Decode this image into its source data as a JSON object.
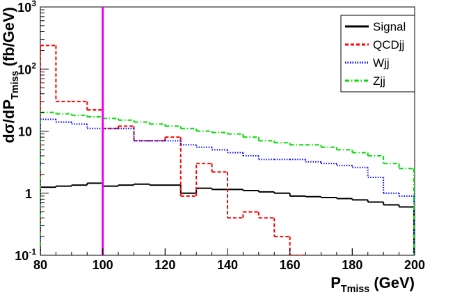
{
  "chart_data": {
    "type": "step-histogram",
    "x_label": {
      "main": "P",
      "sub": "Tmiss",
      "unit": "(GeV)"
    },
    "y_label": {
      "main": "dσ/dP",
      "sub": "Tmiss",
      "unit": "(fb/GeV)"
    },
    "bins": [
      80,
      85,
      90,
      95,
      100,
      105,
      110,
      115,
      120,
      125,
      130,
      135,
      140,
      145,
      150,
      155,
      160,
      165,
      170,
      175,
      180,
      185,
      190,
      195,
      200
    ],
    "series": [
      {
        "name": "Signal",
        "color": "#000000",
        "dash": "solid",
        "values": [
          1.25,
          1.3,
          1.35,
          1.45,
          1.3,
          1.35,
          1.4,
          1.35,
          1.35,
          1.0,
          1.2,
          1.15,
          1.15,
          1.1,
          1.05,
          1.0,
          0.9,
          0.88,
          0.85,
          0.82,
          0.78,
          0.72,
          0.65,
          0.6
        ]
      },
      {
        "name": "QCDjj",
        "color": "#ff0000",
        "dash": "dashed",
        "values": [
          240,
          30,
          30,
          22,
          11,
          12,
          7,
          7,
          8,
          0.9,
          3.0,
          2.2,
          0.4,
          0.5,
          0.4,
          0.2,
          0.1,
          0,
          0,
          0,
          0,
          0,
          0,
          0
        ]
      },
      {
        "name": "Wjj",
        "color": "#0000ff",
        "dash": "dotted",
        "values": [
          15.5,
          14,
          13,
          11,
          11,
          11,
          7,
          7,
          7,
          6,
          5.5,
          5,
          4.5,
          4,
          3.5,
          3.5,
          3.5,
          3.2,
          3,
          2.8,
          2.6,
          1.8,
          1.0,
          0.9
        ]
      },
      {
        "name": "Zjj",
        "color": "#00dd00",
        "dash": "dashdot",
        "values": [
          20,
          19,
          18,
          17,
          16,
          15,
          14,
          13,
          12,
          11,
          10,
          9.5,
          9,
          8,
          7,
          6.5,
          6,
          6,
          5.5,
          5,
          4.5,
          4,
          3,
          2.5
        ]
      }
    ],
    "cut_line": {
      "x": 100,
      "color": "#ee00ee"
    },
    "xlim": [
      80,
      200
    ],
    "xticks": [
      80,
      100,
      120,
      140,
      160,
      180,
      200
    ],
    "ylim": [
      0.1,
      1000
    ],
    "log_y": true,
    "yticks": [
      {
        "value": 0.1,
        "label": "10",
        "exponent": "-1"
      },
      1,
      10,
      {
        "value": 100,
        "label": "10",
        "exponent": "2"
      },
      {
        "value": 1000,
        "label": "10",
        "exponent": "3"
      }
    ],
    "legend": "top-right"
  }
}
